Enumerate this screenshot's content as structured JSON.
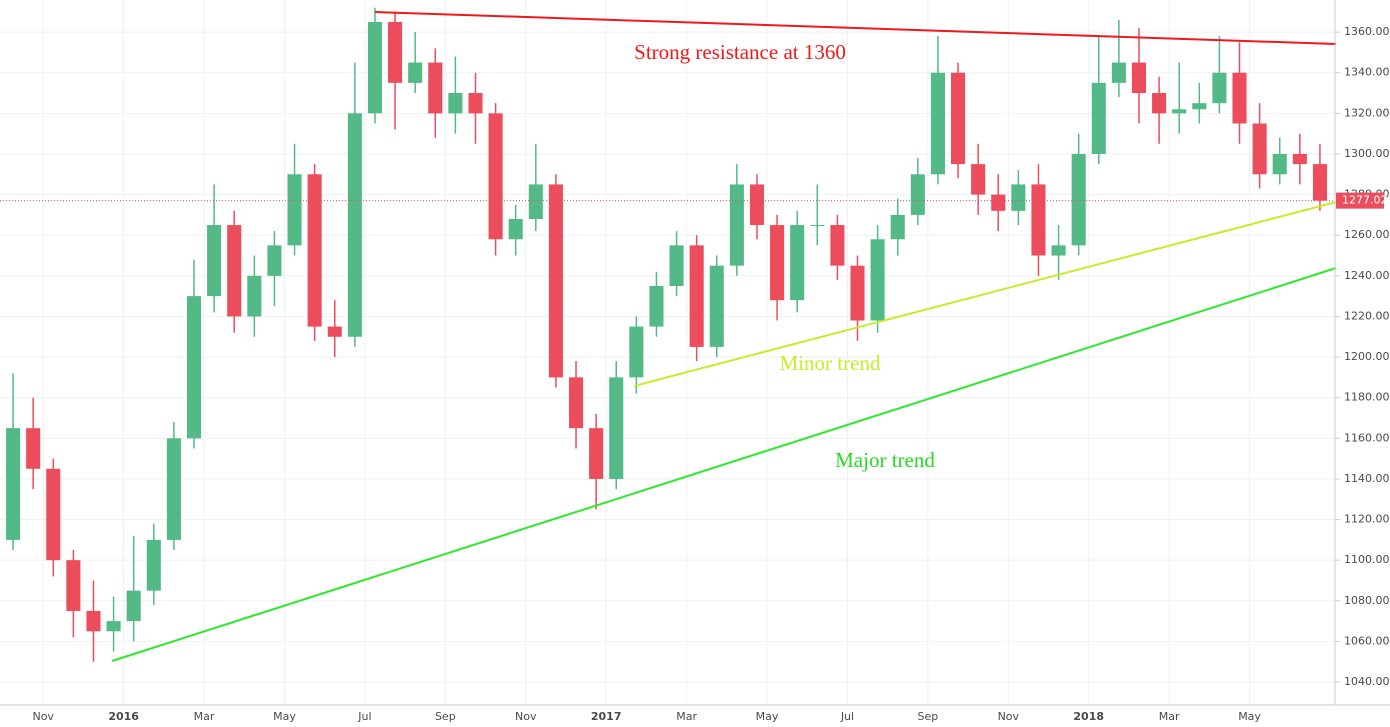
{
  "chart_data": {
    "type": "candlestick",
    "annotations": [
      "Strong resistance at 1360",
      "Minor trend",
      "Major trend"
    ],
    "categories": [
      null,
      null,
      "Nov",
      null,
      null,
      null,
      "2016",
      null,
      null,
      null,
      "Mar",
      null,
      null,
      null,
      "May",
      null,
      null,
      null,
      "Jul",
      null,
      null,
      null,
      "Sep",
      null,
      null,
      null,
      "Nov",
      null,
      null,
      null,
      "2017",
      null,
      null,
      null,
      "Mar",
      null,
      null,
      null,
      "May",
      null,
      null,
      null,
      "Jul",
      null,
      null,
      null,
      "Sep",
      null,
      null,
      null,
      "Nov",
      null,
      null,
      null,
      "2018",
      null,
      null,
      null,
      "Mar",
      null,
      null,
      null,
      "May",
      null,
      null,
      null
    ],
    "open": [
      1110,
      1165,
      1145,
      1100,
      1075,
      1065,
      1070,
      1085,
      1110,
      1160,
      1230,
      1265,
      1220,
      1240,
      1255,
      1290,
      1215,
      1210,
      1320,
      1365,
      1335,
      1345,
      1320,
      1330,
      1320,
      1258,
      1268,
      1285,
      1190,
      1165,
      1140,
      1190,
      1215,
      1235,
      1255,
      1205,
      1245,
      1285,
      1265,
      1228,
      1265,
      1265,
      1245,
      1218,
      1258,
      1270,
      1290,
      1340,
      1295,
      1280,
      1272,
      1285,
      1250,
      1255,
      1300,
      1335,
      1345,
      1330,
      1320,
      1322,
      1325,
      1340,
      1315,
      1290,
      1300,
      1295
    ],
    "high": [
      1192,
      1180,
      1150,
      1105,
      1090,
      1082,
      1112,
      1118,
      1168,
      1248,
      1285,
      1272,
      1250,
      1262,
      1305,
      1295,
      1228,
      1345,
      1372,
      1370,
      1360,
      1352,
      1348,
      1340,
      1325,
      1275,
      1305,
      1290,
      1198,
      1172,
      1198,
      1220,
      1242,
      1262,
      1260,
      1250,
      1295,
      1290,
      1270,
      1272,
      1285,
      1270,
      1250,
      1265,
      1278,
      1298,
      1358,
      1345,
      1305,
      1290,
      1292,
      1295,
      1265,
      1310,
      1358,
      1366,
      1362,
      1338,
      1345,
      1335,
      1358,
      1355,
      1325,
      1308,
      1310,
      1305
    ],
    "low": [
      1105,
      1135,
      1092,
      1062,
      1050,
      1055,
      1060,
      1078,
      1105,
      1155,
      1222,
      1212,
      1210,
      1225,
      1250,
      1208,
      1200,
      1205,
      1315,
      1312,
      1330,
      1308,
      1310,
      1305,
      1250,
      1250,
      1262,
      1185,
      1155,
      1125,
      1135,
      1182,
      1210,
      1230,
      1198,
      1200,
      1240,
      1258,
      1218,
      1222,
      1255,
      1238,
      1208,
      1212,
      1250,
      1265,
      1285,
      1288,
      1270,
      1262,
      1265,
      1240,
      1238,
      1250,
      1295,
      1328,
      1315,
      1305,
      1310,
      1315,
      1320,
      1305,
      1283,
      1285,
      1285,
      1272
    ],
    "close": [
      1165,
      1145,
      1100,
      1075,
      1065,
      1070,
      1085,
      1110,
      1160,
      1230,
      1265,
      1220,
      1240,
      1255,
      1290,
      1215,
      1210,
      1320,
      1365,
      1335,
      1345,
      1320,
      1330,
      1320,
      1258,
      1268,
      1285,
      1190,
      1165,
      1140,
      1190,
      1215,
      1235,
      1255,
      1205,
      1245,
      1285,
      1265,
      1228,
      1265,
      1265,
      1245,
      1218,
      1258,
      1270,
      1290,
      1340,
      1295,
      1280,
      1272,
      1285,
      1250,
      1255,
      1300,
      1335,
      1345,
      1330,
      1320,
      1322,
      1325,
      1340,
      1315,
      1290,
      1300,
      1295,
      1277.02
    ],
    "up_color": "#53b987",
    "down_color": "#eb4d5c",
    "last_price": 1277.02,
    "ylim": [
      1028.7,
      1375.8
    ],
    "yticks": [
      {
        "value": 1040,
        "label": "1040.00"
      },
      {
        "value": 1060,
        "label": "1060.00"
      },
      {
        "value": 1080,
        "label": "1080.00"
      },
      {
        "value": 1100,
        "label": "1100.00"
      },
      {
        "value": 1120,
        "label": "1120.00"
      },
      {
        "value": 1140,
        "label": "1140.00"
      },
      {
        "value": 1160,
        "label": "1160.00"
      },
      {
        "value": 1180,
        "label": "1180.00"
      },
      {
        "value": 1200,
        "label": "1200.00"
      },
      {
        "value": 1220,
        "label": "1220.00"
      },
      {
        "value": 1240,
        "label": "1240.00"
      },
      {
        "value": 1260,
        "label": "1260.00"
      },
      {
        "value": 1280,
        "label": "1280.00"
      },
      {
        "value": 1300,
        "label": "1300.00"
      },
      {
        "value": 1320,
        "label": "1320.00"
      },
      {
        "value": 1340,
        "label": "1340.00"
      },
      {
        "value": 1360,
        "label": "1360.00"
      }
    ],
    "grid": true
  }
}
